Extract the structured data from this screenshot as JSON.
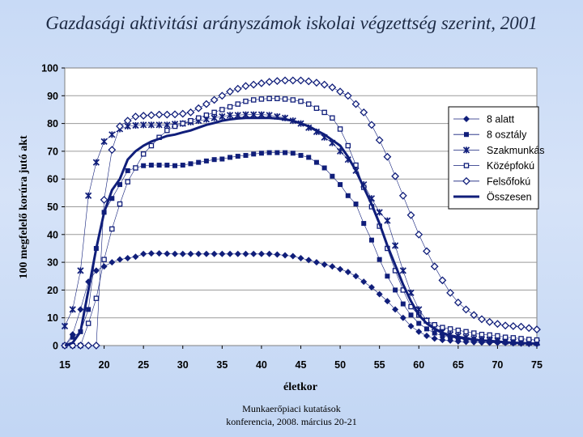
{
  "slide": {
    "title": "Gazdasági aktivitási arányszámok iskolai végzettség szerint, 2001",
    "footer_line1": "Munkaerőpiaci kutatások",
    "footer_line2": "konferencia, 2008. március 20-21"
  },
  "chart_data": {
    "type": "line",
    "title": "Gazdasági aktivitási arányszámok iskolai végzettség szerint, 2001",
    "xlabel": "életkor",
    "ylabel": "100 megfelelő korúra jutó akt",
    "xlim": [
      15,
      75
    ],
    "ylim": [
      0,
      100
    ],
    "xticks": [
      15,
      20,
      25,
      30,
      35,
      40,
      45,
      50,
      55,
      60,
      65,
      70,
      75
    ],
    "yticks": [
      0,
      10,
      20,
      30,
      40,
      50,
      60,
      70,
      80,
      90,
      100
    ],
    "grid": "horizontal",
    "legend_position": "right",
    "x": [
      15,
      16,
      17,
      18,
      19,
      20,
      21,
      22,
      23,
      24,
      25,
      26,
      27,
      28,
      29,
      30,
      31,
      32,
      33,
      34,
      35,
      36,
      37,
      38,
      39,
      40,
      41,
      42,
      43,
      44,
      45,
      46,
      47,
      48,
      49,
      50,
      51,
      52,
      53,
      54,
      55,
      56,
      57,
      58,
      59,
      60,
      61,
      62,
      63,
      64,
      65,
      66,
      67,
      68,
      69,
      70,
      71,
      72,
      73,
      74,
      75
    ],
    "series": [
      {
        "name": "8 alatt",
        "marker": "diamond-filled",
        "color": "#101e7a",
        "values": [
          0,
          4,
          13,
          23,
          27,
          28.5,
          30,
          31,
          31.5,
          32,
          33,
          33.2,
          33.2,
          33.1,
          33,
          33,
          33,
          33,
          33,
          33,
          33,
          33,
          33,
          33,
          33,
          33,
          33,
          32.8,
          32.5,
          32.2,
          31.5,
          30.8,
          30,
          29.2,
          28.5,
          27.5,
          26.5,
          25,
          23,
          21,
          18.5,
          16,
          13,
          10,
          7,
          5,
          3.5,
          2.5,
          2,
          1.8,
          1.5,
          1.3,
          1.2,
          1.1,
          1,
          1,
          0.9,
          0.8,
          0.7,
          0.6,
          0.5
        ]
      },
      {
        "name": "8 osztály",
        "marker": "square-filled",
        "color": "#101e7a",
        "values": [
          0,
          3,
          5,
          13,
          35,
          48,
          53,
          58,
          63,
          64,
          64.8,
          65,
          65,
          65,
          64.8,
          65,
          65.5,
          66,
          66.5,
          67,
          67.2,
          67.8,
          68.2,
          68.5,
          69,
          69.3,
          69.5,
          69.5,
          69.5,
          69.3,
          68.5,
          67.8,
          66,
          64,
          61,
          58,
          54,
          51,
          44,
          38,
          31,
          25,
          20,
          15,
          11,
          8,
          6,
          4.5,
          3.5,
          3,
          2.5,
          2.2,
          2,
          1.8,
          1.6,
          1.5,
          1.4,
          1.3,
          1.2,
          1.1,
          1
        ]
      },
      {
        "name": "Szakmunkás",
        "marker": "asterisk",
        "color": "#101e7a",
        "values": [
          7,
          13,
          27,
          54,
          66,
          73.5,
          76,
          78,
          79,
          79.3,
          79.5,
          79.5,
          79.5,
          79.5,
          79.8,
          80,
          80.5,
          81,
          81.5,
          82,
          82.5,
          83,
          83,
          83.2,
          83.2,
          83.2,
          83,
          82.5,
          82,
          81,
          80,
          78.5,
          77,
          75,
          73,
          70,
          67,
          63,
          58,
          53,
          48,
          45,
          36,
          27,
          19,
          13,
          9,
          6.5,
          5,
          4,
          3.5,
          3,
          2.5,
          2.2,
          2,
          1.8,
          1.5,
          1.3,
          1.2,
          1.1,
          1
        ]
      },
      {
        "name": "Középfokú",
        "marker": "square-open",
        "color": "#101e7a",
        "values": [
          0,
          0,
          0,
          8,
          17,
          31,
          42,
          51,
          59,
          64,
          69,
          72,
          75,
          77.5,
          79,
          80,
          81,
          82,
          83,
          84,
          85,
          86,
          87,
          88,
          88.5,
          88.8,
          89,
          89,
          88.8,
          88.5,
          88,
          87,
          85.5,
          84,
          82,
          78,
          72,
          65,
          57,
          50,
          43,
          35,
          27,
          20,
          14,
          11,
          9,
          7.5,
          6.5,
          6,
          5.5,
          5,
          4.5,
          4,
          3.8,
          3.5,
          3,
          2.8,
          2.5,
          2.2,
          2
        ]
      },
      {
        "name": "Felsőfokú",
        "marker": "diamond-open",
        "color": "#101e7a",
        "values": [
          0,
          0,
          0,
          0,
          0,
          52.5,
          70.5,
          79,
          81,
          82.5,
          82.8,
          83,
          83.2,
          83.2,
          83.3,
          83.5,
          84,
          85.5,
          87,
          88.5,
          90,
          91.5,
          92.5,
          93.5,
          94,
          94.5,
          95,
          95.3,
          95.5,
          95.5,
          95.5,
          95.2,
          94.7,
          94,
          93,
          91.5,
          90,
          87,
          84,
          79.5,
          74,
          68,
          61,
          54,
          47,
          40,
          34,
          28.5,
          23.5,
          19,
          15.5,
          13,
          11,
          9.5,
          8.5,
          7.8,
          7.2,
          7,
          6.8,
          6.3,
          5.8
        ]
      },
      {
        "name": "Összesen",
        "marker": "none",
        "color": "#101e7a",
        "values": [
          0,
          1,
          5,
          20,
          35,
          48,
          56,
          60,
          67,
          70,
          72,
          73.5,
          74.5,
          75.5,
          76,
          76.8,
          77.5,
          78.5,
          79.5,
          80.2,
          81,
          81.5,
          81.8,
          82,
          82,
          82,
          82,
          81.8,
          81.5,
          81,
          80,
          79,
          77.5,
          76,
          74,
          72,
          68,
          63,
          57,
          51,
          44,
          36,
          29,
          22,
          16,
          11,
          8,
          6,
          4.5,
          3.5,
          3,
          2.5,
          2.1,
          1.8,
          1.6,
          1.4,
          1.2,
          1,
          0.9,
          0.8,
          0.7
        ]
      }
    ]
  }
}
